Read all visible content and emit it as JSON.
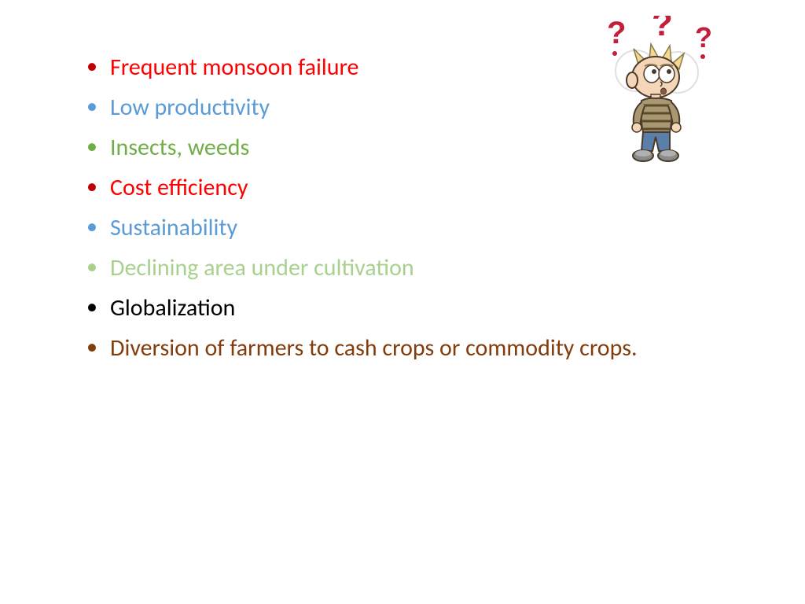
{
  "background_color": "#ffffff",
  "font_family": "Calibri",
  "font_size": 30,
  "line_height": 1.7,
  "bullet_items": [
    {
      "text": "Frequent monsoon failure",
      "color": "#ff0000",
      "bullet_color": "#c00000"
    },
    {
      "text": "Low productivity",
      "color": "#5b9bd5",
      "bullet_color": "#5b9bd5"
    },
    {
      "text": "Insects, weeds",
      "color": "#70ad47",
      "bullet_color": "#70ad47"
    },
    {
      "text": "Cost efficiency",
      "color": "#ff0000",
      "bullet_color": "#c00000"
    },
    {
      "text": "Sustainability",
      "color": "#5b9bd5",
      "bullet_color": "#5b9bd5"
    },
    {
      "text": "Declining area under cultivation",
      "color": "#a9d18e",
      "bullet_color": "#a9d18e"
    },
    {
      "text": "Globalization",
      "color": "#000000",
      "bullet_color": "#000000"
    },
    {
      "text": "Diversion of farmers to cash crops or commodity crops.",
      "color": "#833c0c",
      "bullet_color": "#833c0c"
    }
  ],
  "illustration": {
    "question_mark_color": "#c41e3a",
    "hair_color": "#f2d98f",
    "skin_color": "#f5d6b8",
    "shirt_color": "#a89770",
    "shirt_stripe_color": "#5c4a2e",
    "pants_color": "#5a7fa8",
    "shoe_color": "#8a8a8a"
  }
}
